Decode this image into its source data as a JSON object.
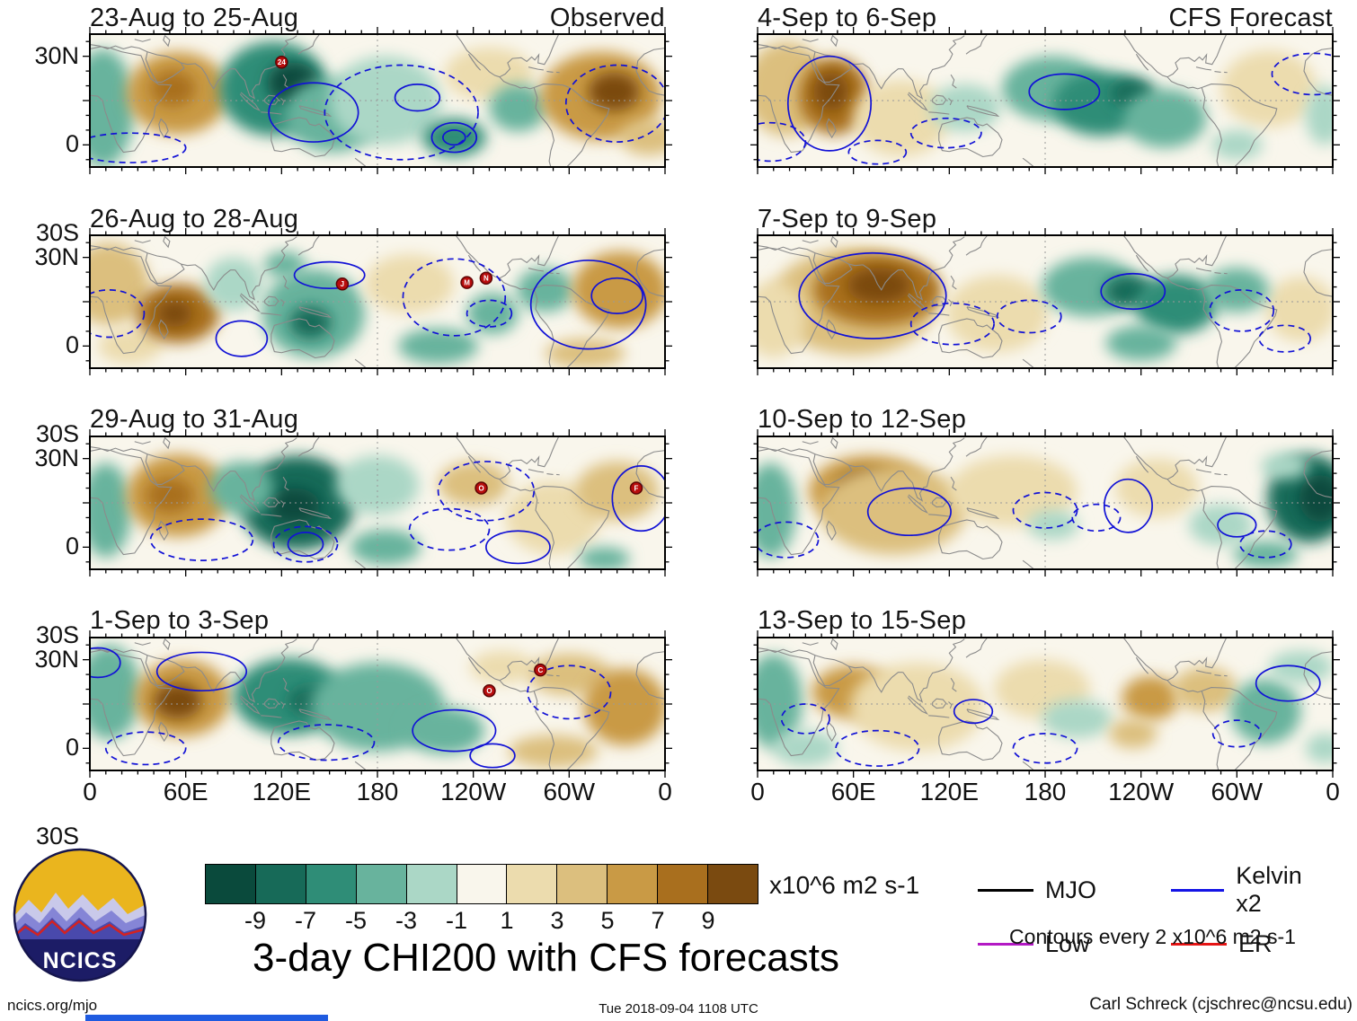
{
  "chart_data": {
    "type": "heatmap",
    "title": "3-day CHI200 with CFS forecasts",
    "units": "x10^6 m2 s-1",
    "contour_note": "Contours every 2 x10^6 m2 s-1",
    "column_headings": [
      "Observed",
      "CFS Forecast"
    ],
    "x_ticks": [
      "0",
      "60E",
      "120E",
      "180",
      "120W",
      "60W",
      "0"
    ],
    "y_ticks": [
      "30N",
      "0",
      "30S"
    ],
    "lon_range": [
      0,
      360
    ],
    "lat_range": [
      -45,
      45
    ],
    "colorbar": {
      "ticks": [
        "-9",
        "-7",
        "-5",
        "-3",
        "-1",
        "1",
        "3",
        "5",
        "7",
        "9"
      ],
      "colors": [
        "#0a4a3c",
        "#176a58",
        "#2f8d77",
        "#68b39d",
        "#abd7c6",
        "#f9f6ec",
        "#ecdcae",
        "#dcbf7e",
        "#c99a45",
        "#a96f1e",
        "#7a4a10"
      ]
    },
    "legend": [
      {
        "label": "MJO",
        "color": "#000000"
      },
      {
        "label": "Kelvin x2",
        "color": "#1414e6"
      },
      {
        "label": "Low",
        "color": "#b319c4"
      },
      {
        "label": "ER",
        "color": "#e61414"
      }
    ],
    "panels": [
      {
        "label": "23-Aug to 25-Aug",
        "corner_label": "Observed",
        "anomaly_centers": [
          [
            8,
            -5,
            20,
            40,
            -4
          ],
          [
            55,
            5,
            32,
            28,
            6
          ],
          [
            52,
            8,
            14,
            12,
            8
          ],
          [
            115,
            8,
            34,
            32,
            -6
          ],
          [
            127,
            12,
            16,
            14,
            -10
          ],
          [
            152,
            -10,
            30,
            25,
            -4
          ],
          [
            185,
            0,
            35,
            30,
            -2
          ],
          [
            228,
            -25,
            20,
            13,
            -6
          ],
          [
            250,
            18,
            28,
            18,
            2
          ],
          [
            268,
            -5,
            18,
            16,
            -4
          ],
          [
            320,
            3,
            38,
            30,
            6
          ],
          [
            328,
            6,
            16,
            13,
            10
          ],
          [
            350,
            -25,
            18,
            12,
            4
          ]
        ],
        "wave_contours": [
          [
            140,
            -8,
            28,
            20,
            "s"
          ],
          [
            205,
            2,
            14,
            9,
            "s"
          ],
          [
            195,
            -8,
            48,
            32,
            "d"
          ],
          [
            228,
            -25,
            14,
            10,
            "s"
          ],
          [
            228,
            -25,
            7,
            5,
            "s"
          ],
          [
            330,
            -2,
            32,
            26,
            "d"
          ],
          [
            25,
            -32,
            35,
            10,
            "d"
          ]
        ],
        "storm_markers": [
          {
            "id": "24",
            "lon": 120,
            "lat": 26
          }
        ]
      },
      {
        "label": "26-Aug to 28-Aug",
        "anomaly_centers": [
          [
            12,
            12,
            25,
            28,
            4
          ],
          [
            25,
            -30,
            20,
            12,
            2
          ],
          [
            55,
            -8,
            26,
            20,
            8
          ],
          [
            53,
            -8,
            11,
            9,
            10
          ],
          [
            90,
            12,
            18,
            18,
            -2
          ],
          [
            140,
            -8,
            32,
            30,
            -4
          ],
          [
            138,
            -14,
            13,
            11,
            -8
          ],
          [
            122,
            25,
            13,
            9,
            -4
          ],
          [
            200,
            12,
            28,
            20,
            2
          ],
          [
            218,
            -30,
            25,
            12,
            -4
          ],
          [
            252,
            -8,
            16,
            14,
            -4
          ],
          [
            285,
            8,
            18,
            15,
            -4
          ],
          [
            332,
            8,
            30,
            26,
            6
          ],
          [
            310,
            -35,
            25,
            10,
            4
          ]
        ],
        "wave_contours": [
          [
            150,
            18,
            22,
            9,
            "s"
          ],
          [
            95,
            -25,
            16,
            12,
            "s"
          ],
          [
            228,
            3,
            32,
            26,
            "d"
          ],
          [
            250,
            -8,
            14,
            9,
            "d"
          ],
          [
            312,
            -2,
            36,
            30,
            "s"
          ],
          [
            330,
            4,
            16,
            12,
            "s"
          ],
          [
            12,
            -8,
            22,
            16,
            "d"
          ]
        ],
        "storm_markers": [
          {
            "id": "J",
            "lon": 158,
            "lat": 12
          },
          {
            "id": "M",
            "lon": 236,
            "lat": 13
          },
          {
            "id": "N",
            "lon": 248,
            "lat": 16
          }
        ]
      },
      {
        "label": "29-Aug to 31-Aug",
        "anomaly_centers": [
          [
            10,
            -5,
            16,
            32,
            -4
          ],
          [
            55,
            5,
            32,
            28,
            6
          ],
          [
            50,
            5,
            15,
            12,
            8
          ],
          [
            130,
            0,
            36,
            32,
            -8
          ],
          [
            128,
            -2,
            16,
            12,
            -10
          ],
          [
            95,
            10,
            20,
            18,
            -4
          ],
          [
            180,
            12,
            26,
            20,
            -2
          ],
          [
            185,
            -30,
            22,
            12,
            -4
          ],
          [
            240,
            13,
            22,
            15,
            4
          ],
          [
            290,
            -10,
            30,
            25,
            2
          ],
          [
            330,
            8,
            26,
            20,
            4
          ],
          [
            322,
            -38,
            16,
            8,
            -4
          ]
        ],
        "wave_contours": [
          [
            248,
            8,
            30,
            20,
            "d"
          ],
          [
            225,
            -18,
            25,
            14,
            "d"
          ],
          [
            268,
            -30,
            20,
            11,
            "s"
          ],
          [
            345,
            3,
            18,
            22,
            "s"
          ],
          [
            70,
            -25,
            32,
            14,
            "d"
          ],
          [
            135,
            -28,
            11,
            8,
            "s"
          ],
          [
            135,
            -28,
            20,
            12,
            "d"
          ]
        ],
        "storm_markers": [
          {
            "id": "O",
            "lon": 245,
            "lat": 10
          },
          {
            "id": "F",
            "lon": 342,
            "lat": 10
          }
        ]
      },
      {
        "label": "1-Sep to 3-Sep",
        "anomaly_centers": [
          [
            12,
            8,
            20,
            32,
            -4
          ],
          [
            58,
            4,
            30,
            26,
            6
          ],
          [
            55,
            2,
            15,
            12,
            10
          ],
          [
            125,
            5,
            35,
            26,
            -6
          ],
          [
            140,
            2,
            16,
            10,
            -8
          ],
          [
            180,
            -2,
            42,
            30,
            -4
          ],
          [
            222,
            -18,
            25,
            16,
            -4
          ],
          [
            258,
            25,
            20,
            11,
            2
          ],
          [
            300,
            20,
            26,
            14,
            4
          ],
          [
            335,
            -2,
            26,
            26,
            6
          ],
          [
            290,
            -32,
            28,
            11,
            4
          ]
        ],
        "wave_contours": [
          [
            70,
            22,
            28,
            13,
            "s"
          ],
          [
            148,
            -26,
            30,
            12,
            "d"
          ],
          [
            228,
            -18,
            26,
            14,
            "s"
          ],
          [
            252,
            -35,
            14,
            8,
            "s"
          ],
          [
            300,
            8,
            26,
            18,
            "d"
          ],
          [
            35,
            -30,
            25,
            11,
            "d"
          ],
          [
            5,
            28,
            14,
            10,
            "s"
          ]
        ],
        "storm_markers": [
          {
            "id": "O",
            "lon": 250,
            "lat": 9
          },
          {
            "id": "C",
            "lon": 282,
            "lat": 23
          }
        ]
      },
      {
        "label": "4-Sep to 6-Sep",
        "corner_label": "CFS Forecast",
        "anomaly_centers": [
          [
            18,
            8,
            26,
            32,
            4
          ],
          [
            48,
            3,
            22,
            26,
            8
          ],
          [
            46,
            6,
            11,
            13,
            10
          ],
          [
            90,
            -12,
            30,
            26,
            2
          ],
          [
            130,
            -5,
            22,
            16,
            -2
          ],
          [
            185,
            8,
            32,
            22,
            -4
          ],
          [
            215,
            -2,
            30,
            22,
            -6
          ],
          [
            235,
            5,
            14,
            10,
            -8
          ],
          [
            255,
            -12,
            26,
            20,
            -4
          ],
          [
            320,
            8,
            30,
            26,
            2
          ],
          [
            300,
            -30,
            16,
            10,
            -2
          ],
          [
            355,
            -10,
            12,
            20,
            -2
          ]
        ],
        "wave_contours": [
          [
            45,
            -2,
            26,
            32,
            "s"
          ],
          [
            8,
            -28,
            22,
            13,
            "d"
          ],
          [
            192,
            6,
            22,
            12,
            "s"
          ],
          [
            348,
            18,
            26,
            14,
            "d"
          ],
          [
            118,
            -22,
            22,
            10,
            "d"
          ],
          [
            75,
            -35,
            18,
            8,
            "d"
          ]
        ],
        "storm_markers": []
      },
      {
        "label": "7-Sep to 9-Sep",
        "anomaly_centers": [
          [
            60,
            0,
            52,
            36,
            4
          ],
          [
            75,
            8,
            40,
            24,
            8
          ],
          [
            76,
            11,
            20,
            12,
            10
          ],
          [
            10,
            -12,
            20,
            26,
            2
          ],
          [
            150,
            -8,
            32,
            26,
            2
          ],
          [
            208,
            10,
            30,
            20,
            -4
          ],
          [
            233,
            7,
            16,
            11,
            -8
          ],
          [
            262,
            -2,
            26,
            20,
            -6
          ],
          [
            240,
            -28,
            22,
            12,
            -4
          ],
          [
            340,
            -5,
            22,
            22,
            2
          ],
          [
            300,
            8,
            20,
            15,
            -4
          ]
        ],
        "wave_contours": [
          [
            72,
            4,
            46,
            29,
            "s"
          ],
          [
            122,
            -15,
            26,
            14,
            "d"
          ],
          [
            170,
            -10,
            20,
            11,
            "d"
          ],
          [
            235,
            7,
            20,
            12,
            "s"
          ],
          [
            303,
            -6,
            20,
            14,
            "d"
          ],
          [
            330,
            -25,
            16,
            9,
            "d"
          ]
        ],
        "storm_markers": []
      },
      {
        "label": "10-Sep to 12-Sep",
        "anomaly_centers": [
          [
            8,
            -5,
            16,
            32,
            -4
          ],
          [
            70,
            8,
            38,
            24,
            6
          ],
          [
            68,
            9,
            19,
            13,
            10
          ],
          [
            85,
            -5,
            46,
            30,
            4
          ],
          [
            160,
            8,
            40,
            24,
            2
          ],
          [
            185,
            -15,
            16,
            10,
            -2
          ],
          [
            250,
            10,
            26,
            20,
            2
          ],
          [
            290,
            -15,
            20,
            14,
            -2
          ],
          [
            345,
            3,
            26,
            30,
            -8
          ],
          [
            352,
            3,
            13,
            16,
            -10
          ],
          [
            318,
            -35,
            20,
            9,
            -4
          ],
          [
            330,
            25,
            15,
            9,
            -2
          ]
        ],
        "wave_contours": [
          [
            95,
            -6,
            26,
            16,
            "s"
          ],
          [
            180,
            -5,
            20,
            12,
            "d"
          ],
          [
            212,
            -10,
            15,
            9,
            "d"
          ],
          [
            232,
            -2,
            15,
            18,
            "s"
          ],
          [
            18,
            -25,
            20,
            12,
            "d"
          ],
          [
            318,
            -28,
            16,
            9,
            "d"
          ],
          [
            300,
            -15,
            12,
            8,
            "s"
          ]
        ],
        "storm_markers": []
      },
      {
        "label": "13-Sep to 15-Sep",
        "anomaly_centers": [
          [
            10,
            2,
            18,
            32,
            -4
          ],
          [
            60,
            8,
            26,
            18,
            6
          ],
          [
            100,
            -2,
            42,
            30,
            2
          ],
          [
            30,
            -30,
            20,
            12,
            -2
          ],
          [
            178,
            10,
            30,
            20,
            2
          ],
          [
            200,
            -10,
            22,
            13,
            -2
          ],
          [
            246,
            4,
            18,
            15,
            6
          ],
          [
            235,
            -20,
            15,
            10,
            4
          ],
          [
            280,
            10,
            20,
            15,
            4
          ],
          [
            318,
            -5,
            22,
            22,
            -4
          ],
          [
            340,
            25,
            20,
            11,
            -2
          ],
          [
            355,
            -30,
            12,
            10,
            -2
          ]
        ],
        "wave_contours": [
          [
            75,
            -30,
            26,
            12,
            "d"
          ],
          [
            135,
            -5,
            12,
            8,
            "s"
          ],
          [
            180,
            -30,
            20,
            10,
            "d"
          ],
          [
            332,
            14,
            20,
            12,
            "s"
          ],
          [
            300,
            -20,
            15,
            9,
            "d"
          ],
          [
            30,
            -10,
            15,
            10,
            "d"
          ]
        ],
        "storm_markers": []
      }
    ]
  },
  "footer": {
    "site": "ncics.org/mjo",
    "timestamp": "Tue 2018-09-04 1108 UTC",
    "credit": "Carl Schreck (cjschrec@ncsu.edu)"
  },
  "logo": {
    "text": "NCICS"
  }
}
